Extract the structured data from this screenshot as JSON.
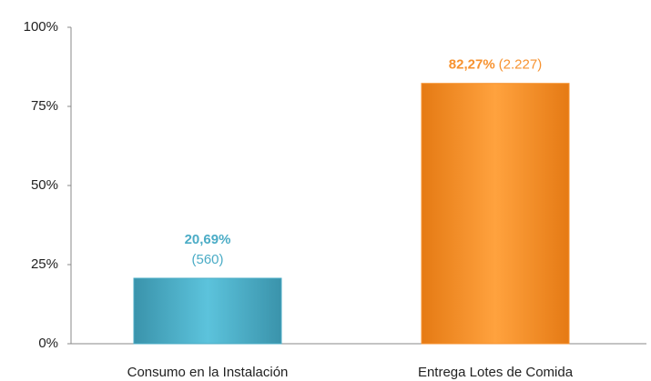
{
  "chart_data": {
    "type": "bar",
    "categories": [
      "Consumo en la Instalación",
      "Entrega Lotes de Comida"
    ],
    "values": [
      20.69,
      82.27
    ],
    "value_labels": [
      "20,69%",
      "82,27%"
    ],
    "count_labels": [
      "(560)",
      "(2.227)"
    ],
    "colors": [
      "#4bacc6",
      "#f7922f"
    ],
    "ylim": [
      0,
      100
    ],
    "yticks": [
      {
        "value": 0,
        "label": "0%"
      },
      {
        "value": 25,
        "label": "25%"
      },
      {
        "value": 50,
        "label": "50%"
      },
      {
        "value": 75,
        "label": "75%"
      },
      {
        "value": 100,
        "label": "100%"
      }
    ],
    "grid": false
  }
}
